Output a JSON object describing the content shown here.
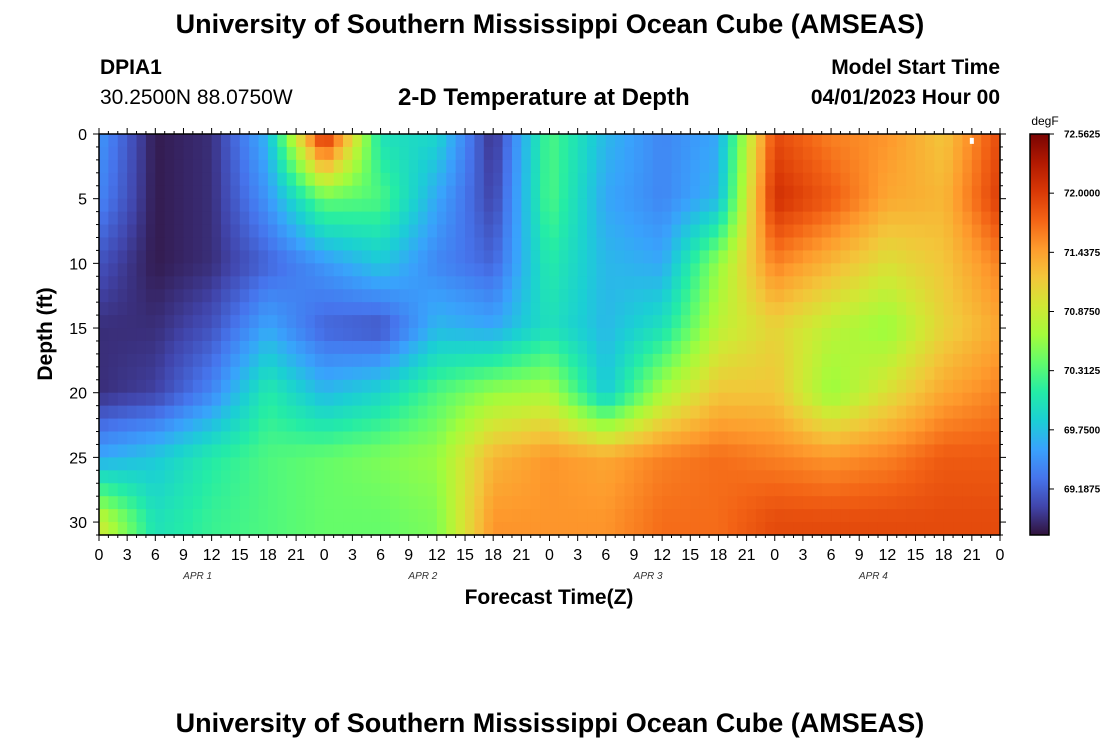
{
  "header": {
    "title": "University of Southern Mississippi Ocean Cube (AMSEAS)",
    "station_id": "DPIA1",
    "coordinates": "30.2500N  88.0750W",
    "plot_title": "2-D Temperature at Depth",
    "model_start_label": "Model Start Time",
    "model_start_value": "04/01/2023 Hour 00"
  },
  "footer": {
    "title": "University of Southern Mississippi Ocean Cube (AMSEAS)"
  },
  "colors": {
    "colormap": [
      "#30123b",
      "#4145ab",
      "#4675ed",
      "#39a2fc",
      "#1bcfd4",
      "#24eca6",
      "#61fc6c",
      "#a4fc3b",
      "#d1e834",
      "#f3c63a",
      "#fe9b2d",
      "#f36315",
      "#d93806",
      "#b11901",
      "#7a0403"
    ]
  },
  "chart_data": {
    "type": "heatmap",
    "xlabel": "Forecast Time(Z)",
    "ylabel": "Depth (ft)",
    "x_tick_labels": [
      "0",
      "3",
      "6",
      "9",
      "12",
      "15",
      "18",
      "21",
      "0",
      "3",
      "6",
      "9",
      "12",
      "15",
      "18",
      "21",
      "0",
      "3",
      "6",
      "9",
      "12",
      "15",
      "18",
      "21",
      "0",
      "3",
      "6",
      "9",
      "12",
      "15",
      "18",
      "21",
      "0"
    ],
    "day_labels": [
      "APR 1",
      "APR 2",
      "APR 3",
      "APR 4"
    ],
    "xlim_hours": [
      0,
      96
    ],
    "y_ticks": [
      0,
      5,
      10,
      15,
      20,
      25,
      30
    ],
    "ylim": [
      31,
      0
    ],
    "colorbar": {
      "unit": "degF",
      "tick_labels": [
        "72.5625",
        "72.0000",
        "71.4375",
        "70.8750",
        "70.3125",
        "69.7500",
        "69.1875"
      ],
      "range": [
        68.75,
        72.5625
      ]
    },
    "field_hours": [
      0,
      6,
      12,
      18,
      24,
      30,
      36,
      42,
      48,
      54,
      60,
      66,
      72,
      78,
      84,
      90,
      96
    ],
    "field_depths": [
      0,
      5,
      10,
      15,
      20,
      25,
      30
    ],
    "temperature_degF": [
      [
        69.5,
        68.8,
        68.9,
        69.7,
        72.2,
        70.0,
        69.9,
        68.9,
        70.3,
        69.7,
        69.4,
        69.6,
        71.9,
        71.6,
        71.5,
        71.2,
        71.9
      ],
      [
        69.4,
        68.8,
        68.9,
        69.5,
        70.4,
        70.3,
        69.6,
        69.0,
        70.3,
        69.6,
        69.4,
        69.7,
        72.1,
        71.8,
        71.4,
        71.3,
        72.0
      ],
      [
        69.1,
        68.8,
        68.9,
        69.2,
        69.5,
        69.8,
        69.4,
        69.2,
        70.1,
        69.7,
        69.6,
        70.6,
        71.6,
        71.3,
        71.0,
        71.2,
        71.6
      ],
      [
        68.9,
        68.9,
        69.1,
        69.6,
        69.2,
        69.1,
        69.7,
        69.6,
        70.0,
        69.7,
        70.0,
        70.8,
        71.1,
        70.8,
        70.6,
        71.1,
        71.4
      ],
      [
        68.9,
        69.0,
        69.4,
        70.1,
        69.7,
        69.9,
        70.3,
        70.6,
        70.7,
        69.8,
        70.7,
        71.2,
        71.2,
        70.6,
        71.0,
        71.4,
        71.6
      ],
      [
        69.6,
        69.8,
        70.1,
        70.3,
        70.4,
        70.5,
        70.6,
        71.3,
        71.5,
        71.4,
        71.6,
        71.7,
        71.6,
        71.5,
        71.6,
        71.8,
        71.8
      ],
      [
        70.9,
        70.0,
        70.2,
        70.3,
        70.4,
        70.4,
        70.5,
        71.5,
        71.5,
        71.5,
        71.7,
        71.7,
        71.9,
        71.9,
        71.9,
        71.9,
        71.9
      ]
    ],
    "markers": [
      {
        "name": "white-marker",
        "hour": 93,
        "depth": 0.3
      }
    ]
  }
}
